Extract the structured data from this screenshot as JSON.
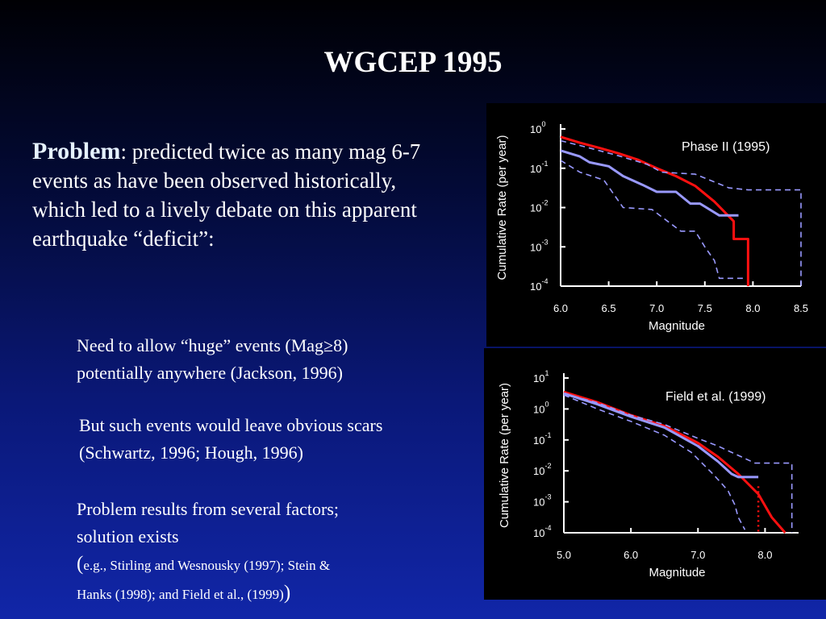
{
  "slide": {
    "title": "WGCEP 1995",
    "problem": {
      "label": "Problem",
      "text": ": predicted twice as many mag 6-7 events as have been observed historically, which led to a lively debate on this apparent earthquake “deficit”:"
    },
    "bullets": [
      {
        "line1": "Need to allow “huge” events (Mag≥8)",
        "line2": "potentially anywhere (Jackson, 1996)"
      },
      {
        "line1": "But such events would leave obvious scars",
        "line2": "(Schwartz, 1996; Hough, 1996)"
      }
    ],
    "solution": {
      "line1": "Problem results from several factors;",
      "line2": "solution exists",
      "open_paren": "(",
      "cite1": "e.g., Stirling and Wesnousky (1997); Stein &",
      "cite2": "Hanks (1998); and  Field et al., (1999)",
      "close_paren": ")"
    }
  },
  "colors": {
    "model": "#ff1010",
    "observed": "#9999ff",
    "bounds": "#9999ff",
    "background": "#000000"
  },
  "chart_data": [
    {
      "type": "line",
      "title": "Phase II (1995)",
      "xlabel": "Magnitude",
      "ylabel": "Cumulative Rate (per year)",
      "xlim": [
        6.0,
        8.5
      ],
      "ylim": [
        -4,
        0
      ],
      "ylog": true,
      "xticks": [
        "6.0",
        "6.5",
        "7.0",
        "7.5",
        "8.0",
        "8.5"
      ],
      "yticks": [
        {
          "base": "10",
          "exp": "0"
        },
        {
          "base": "10",
          "exp": "-1"
        },
        {
          "base": "10",
          "exp": "-2"
        },
        {
          "base": "10",
          "exp": "-3"
        },
        {
          "base": "10",
          "exp": "-4"
        }
      ],
      "series": [
        {
          "role": "model",
          "style": "solid",
          "x": [
            6.0,
            6.2,
            6.4,
            6.6,
            6.8,
            7.0,
            7.2,
            7.4,
            7.6,
            7.8,
            7.8,
            7.95,
            7.95
          ],
          "log10_rate": [
            -0.2,
            -0.35,
            -0.48,
            -0.62,
            -0.78,
            -1.0,
            -1.2,
            -1.45,
            -1.85,
            -2.35,
            -2.8,
            -2.8,
            -4.0
          ]
        },
        {
          "role": "observed",
          "style": "solid",
          "x": [
            6.0,
            6.2,
            6.3,
            6.5,
            6.65,
            6.85,
            7.0,
            7.2,
            7.35,
            7.45,
            7.65,
            7.85
          ],
          "log10_rate": [
            -0.55,
            -0.7,
            -0.85,
            -0.95,
            -1.2,
            -1.42,
            -1.6,
            -1.6,
            -1.9,
            -1.9,
            -2.2,
            -2.2
          ]
        },
        {
          "role": "upper-bound",
          "style": "dashed",
          "x": [
            6.0,
            6.2,
            6.4,
            6.6,
            6.9,
            7.05,
            7.4,
            7.75,
            7.95,
            8.5,
            8.5
          ],
          "log10_rate": [
            -0.3,
            -0.42,
            -0.55,
            -0.68,
            -0.9,
            -1.1,
            -1.15,
            -1.5,
            -1.55,
            -1.55,
            -4.0
          ]
        },
        {
          "role": "lower-bound",
          "style": "dashed",
          "x": [
            6.0,
            6.2,
            6.45,
            6.65,
            6.95,
            7.25,
            7.4,
            7.5,
            7.6,
            7.65,
            7.9
          ],
          "log10_rate": [
            -0.8,
            -1.1,
            -1.3,
            -2.0,
            -2.05,
            -2.6,
            -2.6,
            -3.0,
            -3.35,
            -3.8,
            -3.8
          ]
        }
      ]
    },
    {
      "type": "line",
      "title": "Field et al. (1999)",
      "xlabel": "Magnitude",
      "ylabel": "Cumulative Rate (per year)",
      "xlim": [
        5.0,
        8.5
      ],
      "ylim": [
        -4,
        1
      ],
      "ylog": true,
      "xticks": [
        "5.0",
        "6.0",
        "7.0",
        "8.0"
      ],
      "yticks": [
        {
          "base": "10",
          "exp": "1"
        },
        {
          "base": "10",
          "exp": "0"
        },
        {
          "base": "10",
          "exp": "-1"
        },
        {
          "base": "10",
          "exp": "-2"
        },
        {
          "base": "10",
          "exp": "-3"
        },
        {
          "base": "10",
          "exp": "-4"
        }
      ],
      "series": [
        {
          "role": "model",
          "style": "solid",
          "x": [
            5.0,
            5.5,
            6.0,
            6.5,
            7.0,
            7.3,
            7.6,
            7.9,
            8.1,
            8.3
          ],
          "log10_rate": [
            0.55,
            0.22,
            -0.2,
            -0.55,
            -1.1,
            -1.55,
            -2.1,
            -2.75,
            -3.5,
            -4.0
          ]
        },
        {
          "role": "observed",
          "style": "solid",
          "x": [
            5.0,
            5.5,
            6.0,
            6.5,
            7.0,
            7.3,
            7.5,
            7.6,
            7.8,
            7.9
          ],
          "log10_rate": [
            0.5,
            0.15,
            -0.25,
            -0.6,
            -1.2,
            -1.7,
            -2.1,
            -2.2,
            -2.2,
            -2.2
          ]
        },
        {
          "role": "upper-bound",
          "style": "dashed",
          "x": [
            5.0,
            5.5,
            6.0,
            6.5,
            7.0,
            7.3,
            7.6,
            7.85,
            8.4,
            8.4
          ],
          "log10_rate": [
            0.5,
            0.2,
            -0.2,
            -0.5,
            -0.95,
            -1.2,
            -1.5,
            -1.75,
            -1.75,
            -4.0
          ]
        },
        {
          "role": "lower-bound",
          "style": "dashed",
          "x": [
            5.0,
            5.5,
            6.0,
            6.5,
            6.9,
            7.2,
            7.35,
            7.45,
            7.55,
            7.6,
            7.7
          ],
          "log10_rate": [
            0.45,
            0.0,
            -0.4,
            -0.85,
            -1.4,
            -2.05,
            -2.4,
            -2.65,
            -3.1,
            -3.5,
            -3.9
          ]
        },
        {
          "role": "model-truncated",
          "style": "dotted",
          "x": [
            7.9,
            7.9
          ],
          "log10_rate": [
            -2.5,
            -4.0
          ]
        }
      ]
    }
  ]
}
